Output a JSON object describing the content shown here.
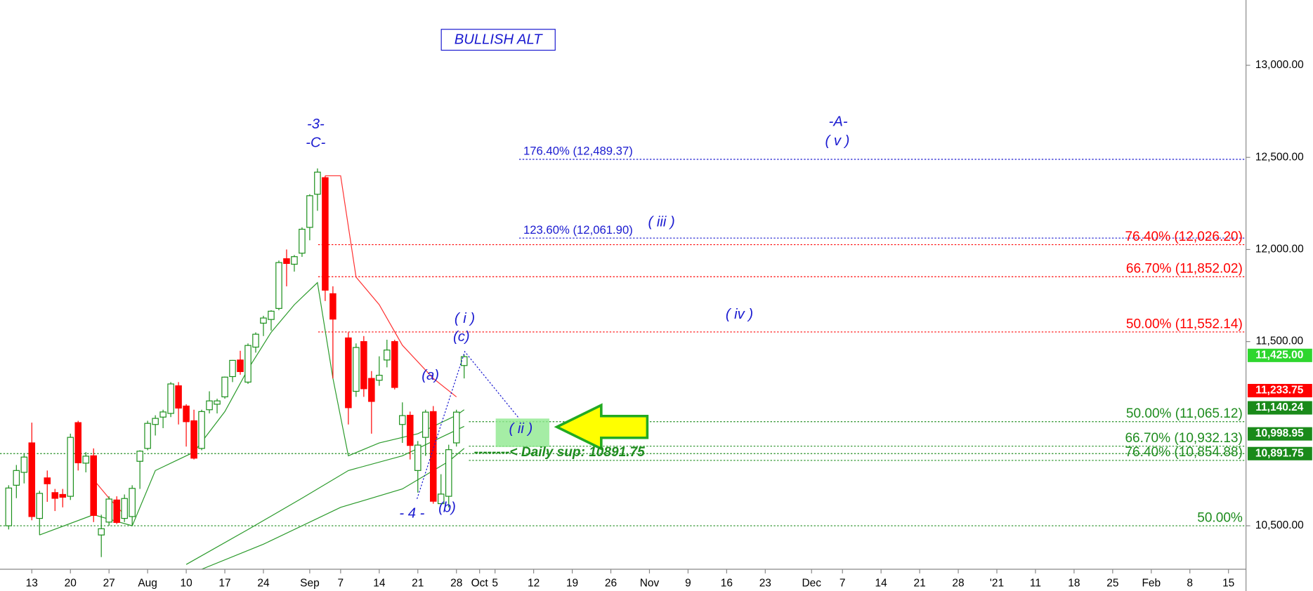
{
  "chart_data": {
    "type": "candlestick",
    "x": [
      -3,
      -2,
      -1,
      0,
      1,
      2,
      3,
      4,
      5,
      6,
      7,
      8,
      9,
      10,
      11,
      12,
      13,
      14,
      15,
      16,
      17,
      18,
      19,
      20,
      21,
      22,
      23,
      24,
      25,
      26,
      27,
      28,
      29,
      30,
      31,
      32,
      33,
      34,
      35,
      36,
      37,
      38,
      39,
      41,
      42,
      43,
      44,
      45,
      46,
      47,
      48,
      49,
      50,
      51,
      52,
      53,
      54,
      55,
      56
    ],
    "open": [
      10500,
      10720,
      10790,
      10950,
      10540,
      10760,
      10680,
      10670,
      10660,
      11060,
      10840,
      10880,
      10450,
      10520,
      10640,
      10540,
      10550,
      10850,
      10920,
      11050,
      11090,
      11110,
      11260,
      11150,
      11070,
      10920,
      11130,
      11160,
      11200,
      11310,
      11400,
      11280,
      11470,
      11600,
      11620,
      11680,
      11950,
      11920,
      11980,
      12120,
      12300,
      12390,
      11760,
      11520,
      11230,
      11500,
      11300,
      11290,
      11400,
      11500,
      11050,
      11100,
      10800,
      10980,
      11120,
      10620,
      10660,
      10950,
      11370
    ],
    "high": [
      10720,
      10830,
      10890,
      11060,
      10690,
      10800,
      10700,
      10700,
      11000,
      11070,
      10900,
      10920,
      10560,
      10660,
      10660,
      10670,
      10720,
      10910,
      11070,
      11100,
      11130,
      11280,
      11280,
      11160,
      11130,
      11130,
      11230,
      11190,
      11310,
      11400,
      11450,
      11490,
      11550,
      11640,
      11670,
      11940,
      12000,
      11970,
      12120,
      12300,
      12440,
      12400,
      11800,
      11550,
      11490,
      11530,
      11340,
      11420,
      11510,
      11510,
      11170,
      11120,
      10960,
      11130,
      11150,
      10780,
      10940,
      11130,
      11430
    ],
    "low": [
      10480,
      10650,
      10730,
      10530,
      10450,
      10630,
      10580,
      10600,
      10640,
      10800,
      10790,
      10520,
      10330,
      10500,
      10510,
      10520,
      10500,
      10700,
      10910,
      10990,
      11030,
      11090,
      11050,
      10930,
      10860,
      10910,
      11110,
      11110,
      11190,
      11280,
      11320,
      11270,
      11440,
      11530,
      11560,
      11670,
      11800,
      11880,
      11960,
      12050,
      12210,
      11720,
      11300,
      11050,
      11200,
      11200,
      11000,
      11260,
      11360,
      11240,
      10950,
      10860,
      10680,
      10880,
      10620,
      10620,
      10600,
      10930,
      11300
    ],
    "close": [
      10705,
      10800,
      10873,
      10550,
      10676,
      10728,
      10649,
      10655,
      10980,
      10842,
      10878,
      10556,
      10484,
      10645,
      10518,
      10648,
      10703,
      10905,
      11056,
      11083,
      11118,
      11270,
      11139,
      11065,
      10867,
      11120,
      11178,
      11178,
      11307,
      11398,
      11337,
      11479,
      11540,
      11628,
      11665,
      11929,
      11924,
      11961,
      12110,
      12292,
      12420,
      11779,
      11622,
      11141,
      11468,
      11244,
      11175,
      11317,
      11454,
      11251,
      11098,
      10936,
      10938,
      11117,
      10633,
      10672,
      10913,
      11117,
      11418
    ],
    "up_color": "#1a8f1a",
    "down_color": "#ff0000",
    "lines": [
      {
        "color": "#ff3030",
        "x": [
          8,
          10,
          12,
          13,
          38,
          40,
          42,
          45,
          48,
          52,
          55
        ],
        "values": [
          10750,
          10650,
          10560,
          null,
          12400,
          12400,
          11850,
          11700,
          11480,
          11300,
          11200
        ]
      },
      {
        "color": "#2a9a2a",
        "x": [
          1,
          8,
          13,
          16,
          21,
          25,
          28,
          31,
          34,
          37,
          39,
          41,
          45,
          50,
          55,
          56
        ],
        "values": [
          10450,
          10560,
          10500,
          10800,
          10900,
          11120,
          11350,
          11550,
          11700,
          11820,
          11300,
          10880,
          10950,
          11000,
          11100,
          11130
        ]
      },
      {
        "color": "#2a9a2a",
        "x": [
          20,
          28,
          35,
          41,
          48,
          55,
          56
        ],
        "values": [
          10290,
          10480,
          10650,
          10800,
          10880,
          11020,
          11040
        ]
      },
      {
        "color": "#2a9a2a",
        "x": [
          22,
          30,
          40,
          48,
          54,
          56
        ],
        "values": [
          10264,
          10400,
          10600,
          10700,
          10850,
          10920
        ]
      }
    ],
    "levels": [
      {
        "label": "176.40% (12,489.37)",
        "value": 12489.37,
        "color": "#1a1ad0"
      },
      {
        "label": "123.60% (12,061.90)",
        "value": 12061.9,
        "color": "#1a1ad0"
      },
      {
        "label": "76.40% (12,026.20)",
        "value": 12026.2,
        "color": "#ff0000"
      },
      {
        "label": "66.70% (11,852.02)",
        "value": 11852.02,
        "color": "#ff0000"
      },
      {
        "label": "50.00% (11,552.14)",
        "value": 11552.14,
        "color": "#ff0000"
      },
      {
        "label": "50.00% (11,065.12)",
        "value": 11065.12,
        "color": "#1e8c1e"
      },
      {
        "label": "66.70% (10,932.13)",
        "value": 10932.13,
        "color": "#1e8c1e"
      },
      {
        "label": "76.40% (10,854.88)",
        "value": 10854.88,
        "color": "#1e8c1e"
      },
      {
        "label": "50.00%",
        "value": 10500,
        "color": "#1e8c1e"
      }
    ],
    "support": {
      "value": 10891.75,
      "label": "--------<  Daily sup: 10891.75",
      "color": "#1e8c1e"
    },
    "badges": [
      {
        "value": 11425,
        "label": "11,425.00",
        "color": "#2ed62e"
      },
      {
        "value": 11233.75,
        "label": "11,233.75",
        "color": "#ff0000"
      },
      {
        "value": 11140.24,
        "label": "11,140.24",
        "color": "#1a8a1a"
      },
      {
        "value": 10998.95,
        "label": "10,998.95",
        "color": "#1a8a1a"
      },
      {
        "value": 10891.75,
        "label": "10,891.75",
        "color": "#1a8a1a"
      }
    ],
    "annotations": [
      "BULLISH ALT",
      "-3-",
      "-C-",
      "-A-",
      "( v )",
      "( iii )",
      "( iv )",
      "( i )",
      "(c)",
      "(a)",
      "( ii )",
      "- 4 -",
      "(b)"
    ],
    "xlim": [
      -4.121,
      157.27
    ],
    "ylim": [
      10264,
      13354.5
    ],
    "yticks": [
      {
        "value": 10500,
        "label": "10,500.00"
      },
      {
        "value": 11500,
        "label": "11,500.00"
      },
      {
        "value": 12000,
        "label": "12,000.00"
      },
      {
        "value": 12500,
        "label": "12,500.00"
      },
      {
        "value": 13000,
        "label": "13,000.00"
      }
    ],
    "xticks": [
      {
        "value": 0,
        "label": "13"
      },
      {
        "value": 5,
        "label": "20"
      },
      {
        "value": 10,
        "label": "27"
      },
      {
        "value": 15,
        "label": "Aug"
      },
      {
        "value": 20,
        "label": "10"
      },
      {
        "value": 25,
        "label": "17"
      },
      {
        "value": 30,
        "label": "24"
      },
      {
        "value": 36,
        "label": "Sep"
      },
      {
        "value": 40,
        "label": "7"
      },
      {
        "value": 45,
        "label": "14"
      },
      {
        "value": 50,
        "label": "21"
      },
      {
        "value": 55,
        "label": "28"
      },
      {
        "value": 58,
        "label": "Oct"
      },
      {
        "value": 60,
        "label": "5"
      },
      {
        "value": 65,
        "label": "12"
      },
      {
        "value": 70,
        "label": "19"
      },
      {
        "value": 75,
        "label": "26"
      },
      {
        "value": 80,
        "label": "Nov"
      },
      {
        "value": 85,
        "label": "9"
      },
      {
        "value": 90,
        "label": "16"
      },
      {
        "value": 95,
        "label": "23"
      },
      {
        "value": 101,
        "label": "Dec"
      },
      {
        "value": 105,
        "label": "7"
      },
      {
        "value": 110,
        "label": "14"
      },
      {
        "value": 115,
        "label": "21"
      },
      {
        "value": 120,
        "label": "28"
      },
      {
        "value": 125,
        "label": "'21"
      },
      {
        "value": 130,
        "label": "11"
      },
      {
        "value": 135,
        "label": "18"
      },
      {
        "value": 140,
        "label": "25"
      },
      {
        "value": 145,
        "label": "Feb"
      },
      {
        "value": 150,
        "label": "8"
      },
      {
        "value": 155,
        "label": "15"
      }
    ]
  }
}
